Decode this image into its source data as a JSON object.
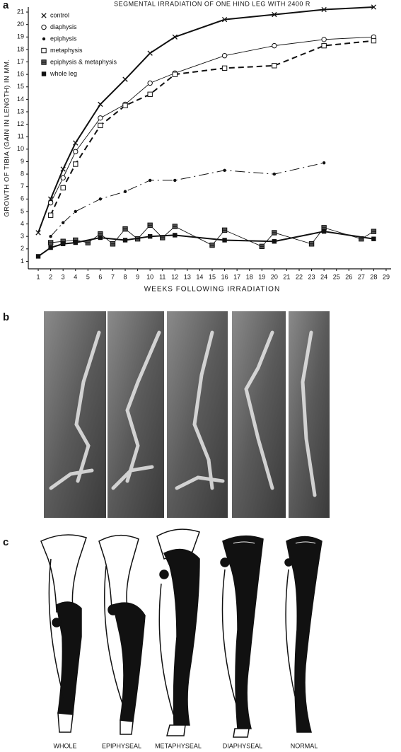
{
  "chart_data": {
    "type": "line",
    "panel_label": "a",
    "title": "SEGMENTAL IRRADIATION OF ONE HIND LEG WITH 2400 R",
    "x_label": "WEEKS FOLLOWING IRRADIATION",
    "y_label": "GROWTH OF TIBIA (GAIN IN LENGTH) IN MM.",
    "xlim": [
      0.2,
      29.4
    ],
    "ylim": [
      0.4,
      21.4
    ],
    "xticks": [
      1,
      2,
      3,
      4,
      5,
      6,
      7,
      8,
      9,
      10,
      11,
      12,
      13,
      14,
      15,
      16,
      17,
      18,
      19,
      20,
      21,
      22,
      23,
      24,
      25,
      26,
      27,
      28,
      29
    ],
    "yticks": [
      1,
      2,
      3,
      4,
      5,
      6,
      7,
      8,
      9,
      10,
      11,
      12,
      13,
      14,
      15,
      16,
      17,
      18,
      19,
      20,
      21
    ],
    "legend": "upper left",
    "series": [
      {
        "name": "control",
        "color": "#111111",
        "marker": "x",
        "line_style": "solid-thick",
        "x": [
          1,
          2,
          3,
          4,
          6,
          8,
          10,
          12,
          16,
          20,
          24,
          28
        ],
        "values": [
          3.3,
          6,
          8.4,
          10.5,
          13.6,
          15.6,
          17.7,
          19,
          20.4,
          20.8,
          21.2,
          21.4
        ]
      },
      {
        "name": "diaphysis",
        "color": "#111111",
        "marker": "circle-open",
        "line_style": "solid-thin",
        "x": [
          2,
          3,
          4,
          6,
          8,
          10,
          12,
          16,
          20,
          24,
          28
        ],
        "values": [
          5.7,
          7.7,
          9.8,
          12.5,
          13.6,
          15.3,
          16.1,
          17.5,
          18.3,
          18.8,
          19
        ]
      },
      {
        "name": "epiphysis",
        "color": "#111111",
        "marker": "dot",
        "line_style": "long-dash",
        "x": [
          2,
          3,
          4,
          6,
          8,
          10,
          12,
          16,
          20,
          24
        ],
        "values": [
          3,
          4.1,
          5,
          6,
          6.6,
          7.5,
          7.5,
          8.3,
          8,
          8.9
        ]
      },
      {
        "name": "metaphysis",
        "color": "#111111",
        "marker": "square-open",
        "line_style": "dashed-thick",
        "x": [
          2,
          3,
          4,
          6,
          8,
          10,
          12,
          16,
          20,
          24,
          28
        ],
        "values": [
          4.7,
          6.9,
          8.8,
          11.9,
          13.5,
          14.4,
          16,
          16.5,
          16.7,
          18.3,
          18.7
        ]
      },
      {
        "name": "epiphysis & metaphysis",
        "color": "#111111",
        "marker": "square-half",
        "line_style": "solid-thin",
        "x": [
          2,
          3,
          4,
          5,
          6,
          7,
          8,
          9,
          10,
          11,
          12,
          15,
          16,
          19,
          20,
          23,
          24,
          27,
          28
        ],
        "values": [
          2.5,
          2.6,
          2.7,
          2.5,
          3.2,
          2.4,
          3.6,
          2.8,
          3.9,
          2.9,
          3.8,
          2.3,
          3.5,
          2.2,
          3.3,
          2.4,
          3.7,
          2.8,
          3.4
        ]
      },
      {
        "name": "whole leg",
        "color": "#111111",
        "marker": "square-filled",
        "line_style": "solid-thick",
        "x": [
          1,
          2,
          3,
          4,
          6,
          8,
          10,
          12,
          16,
          20,
          24,
          28
        ],
        "values": [
          1.4,
          2.1,
          2.4,
          2.5,
          2.9,
          2.7,
          3,
          3.1,
          2.7,
          2.6,
          3.4,
          2.8
        ]
      }
    ]
  },
  "xray_panel": {
    "label": "b"
  },
  "diagram_panel": {
    "label": "c",
    "captions": [
      "WHOLE",
      "EPIPHYSEAL",
      "METAPHYSEAL",
      "DIAPHYSEAL",
      "NORMAL"
    ]
  }
}
